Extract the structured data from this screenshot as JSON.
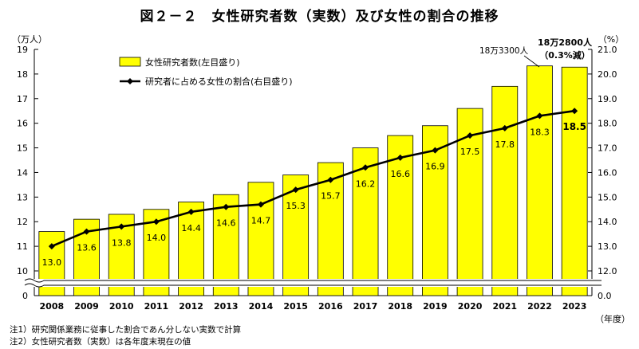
{
  "title": "図２－２　女性研究者数（実数）及び女性の割合の推移",
  "notes": [
    "注1）研究関係業務に従事した割合であん分しない実数で計算",
    "注2）女性研究者数（実数）は各年度末現在の値"
  ],
  "annotations": {
    "prev": "18万3300人",
    "latest_line1": "18万2800人",
    "latest_line2": "（0.3%減）"
  },
  "chart_data": {
    "type": "bar",
    "categories": [
      "2008",
      "2009",
      "2010",
      "2011",
      "2012",
      "2013",
      "2014",
      "2015",
      "2016",
      "2017",
      "2018",
      "2019",
      "2020",
      "2021",
      "2022",
      "2023"
    ],
    "xlabel": "（年度）",
    "series": [
      {
        "name": "女性研究者数(左目盛り)",
        "type": "bar",
        "axis": "left",
        "color": "#ffff00",
        "values": [
          11.6,
          12.1,
          12.3,
          12.5,
          12.8,
          13.1,
          13.6,
          13.9,
          14.4,
          15.0,
          15.5,
          15.9,
          16.6,
          17.5,
          18.33,
          18.28
        ]
      },
      {
        "name": "研究者に占める女性の割合(右目盛り)",
        "type": "line",
        "axis": "right",
        "color": "#000000",
        "values": [
          13.0,
          13.6,
          13.8,
          14.0,
          14.4,
          14.6,
          14.7,
          15.3,
          15.7,
          16.2,
          16.6,
          16.9,
          17.5,
          17.8,
          18.3,
          18.5
        ],
        "labels": [
          "13.0",
          "13.6",
          "13.8",
          "14.0",
          "14.4",
          "14.6",
          "14.7",
          "15.3",
          "15.7",
          "16.2",
          "16.6",
          "16.9",
          "17.5",
          "17.8",
          "18.3",
          "18.5"
        ]
      }
    ],
    "y_left": {
      "label": "（万人）",
      "ticks": [
        "10",
        "11",
        "12",
        "13",
        "14",
        "15",
        "16",
        "17",
        "18",
        "19"
      ],
      "break_tick": "0",
      "range": [
        10,
        19
      ]
    },
    "y_right": {
      "label": "（%）",
      "ticks": [
        "12.0",
        "13.0",
        "14.0",
        "15.0",
        "16.0",
        "17.0",
        "18.0",
        "19.0",
        "20.0",
        "21.0"
      ],
      "break_tick": "0.0",
      "range": [
        12,
        21
      ]
    },
    "grid": false,
    "legend": "top-left",
    "colors": {
      "bar": "#ffff00",
      "bar_edge": "#000000",
      "line": "#000000"
    }
  }
}
